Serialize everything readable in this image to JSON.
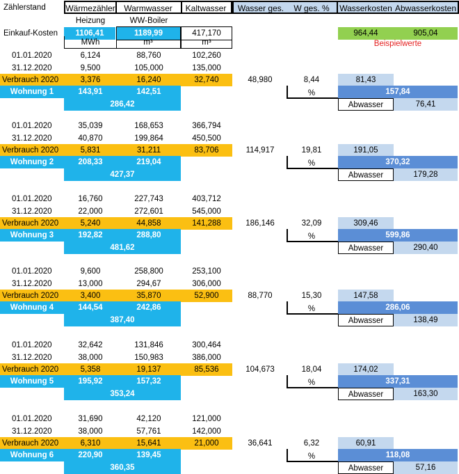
{
  "header": {
    "title": "Zählerstand",
    "cols": [
      "Wärmezähler",
      "Warmwasser",
      "Kaltwasser",
      "Wasser ges.",
      "W ges. %",
      "Wasserkosten",
      "Abwasserkosten"
    ],
    "sub_labels": [
      "Heizung",
      "WW-Boiler"
    ]
  },
  "einkauf": {
    "label": "Einkauf-Kosten",
    "heizung": "1106,41",
    "ww": "1189,99",
    "kalt": "417,170",
    "wasserkosten": "964,44",
    "abwasserkosten": "905,04",
    "note": "Beispielwerte"
  },
  "units": [
    "MWh",
    "m³",
    "m³"
  ],
  "colors": {
    "blue": "#1fb3ea",
    "orange": "#fbbf12",
    "light_blue": "#c4d8ee",
    "mid_blue": "#5b8ed6",
    "green": "#92d050",
    "note_red": "#e41e1e"
  },
  "blocks": [
    {
      "rows": [
        {
          "date": "01.01.2020",
          "heat": "6,124",
          "ww": "88,760",
          "kalt": "102,260"
        },
        {
          "date": "31.12.2020",
          "heat": "9,500",
          "ww": "105,000",
          "kalt": "135,000"
        }
      ],
      "verbrauch": {
        "label": "Verbrauch 2020",
        "heat": "3,376",
        "ww": "16,240",
        "kalt": "32,740",
        "ges": "48,980",
        "pct": "8,44",
        "wasserkosten": "81,43"
      },
      "wohnung": {
        "label": "Wohnung 1",
        "heat": "143,91",
        "ww": "142,51",
        "sum": "286,42",
        "pct_label": "%",
        "kosten": "157,84",
        "abwasser_label": "Abwasser",
        "abwasser": "76,41"
      }
    },
    {
      "rows": [
        {
          "date": "01.01.2020",
          "heat": "35,039",
          "ww": "168,653",
          "kalt": "366,794"
        },
        {
          "date": "31.12.2020",
          "heat": "40,870",
          "ww": "199,864",
          "kalt": "450,500"
        }
      ],
      "verbrauch": {
        "label": "Verbrauch 2020",
        "heat": "5,831",
        "ww": "31,211",
        "kalt": "83,706",
        "ges": "114,917",
        "pct": "19,81",
        "wasserkosten": "191,05"
      },
      "wohnung": {
        "label": "Wohnung 2",
        "heat": "208,33",
        "ww": "219,04",
        "sum": "427,37",
        "pct_label": "%",
        "kosten": "370,32",
        "abwasser_label": "Abwasser",
        "abwasser": "179,28"
      }
    },
    {
      "rows": [
        {
          "date": "01.01.2020",
          "heat": "16,760",
          "ww": "227,743",
          "kalt": "403,712"
        },
        {
          "date": "31.12.2020",
          "heat": "22,000",
          "ww": "272,601",
          "kalt": "545,000"
        }
      ],
      "verbrauch": {
        "label": "Verbrauch 2020",
        "heat": "5,240",
        "ww": "44,858",
        "kalt": "141,288",
        "ges": "186,146",
        "pct": "32,09",
        "wasserkosten": "309,46"
      },
      "wohnung": {
        "label": "Wohnung 3",
        "heat": "192,82",
        "ww": "288,80",
        "sum": "481,62",
        "pct_label": "%",
        "kosten": "599,86",
        "abwasser_label": "Abwasser",
        "abwasser": "290,40"
      }
    },
    {
      "rows": [
        {
          "date": "01.01.2020",
          "heat": "9,600",
          "ww": "258,800",
          "kalt": "253,100"
        },
        {
          "date": "31.12.2020",
          "heat": "13,000",
          "ww": "294,67",
          "kalt": "306,000"
        }
      ],
      "verbrauch": {
        "label": "Verbrauch 2020",
        "heat": "3,400",
        "ww": "35,870",
        "kalt": "52,900",
        "ges": "88,770",
        "pct": "15,30",
        "wasserkosten": "147,58"
      },
      "wohnung": {
        "label": "Wohnung 4",
        "heat": "144,54",
        "ww": "242,86",
        "sum": "387,40",
        "pct_label": "%",
        "kosten": "286,06",
        "abwasser_label": "Abwasser",
        "abwasser": "138,49"
      }
    },
    {
      "rows": [
        {
          "date": "01.01.2020",
          "heat": "32,642",
          "ww": "131,846",
          "kalt": "300,464"
        },
        {
          "date": "31.12.2020",
          "heat": "38,000",
          "ww": "150,983",
          "kalt": "386,000"
        }
      ],
      "verbrauch": {
        "label": "Verbrauch 2020",
        "heat": "5,358",
        "ww": "19,137",
        "kalt": "85,536",
        "ges": "104,673",
        "pct": "18,04",
        "wasserkosten": "174,02"
      },
      "wohnung": {
        "label": "Wohnung 5",
        "heat": "195,92",
        "ww": "157,32",
        "sum": "353,24",
        "pct_label": "%",
        "kosten": "337,31",
        "abwasser_label": "Abwasser",
        "abwasser": "163,30"
      }
    },
    {
      "rows": [
        {
          "date": "01.01.2020",
          "heat": "31,690",
          "ww": "42,120",
          "kalt": "121,000"
        },
        {
          "date": "31.12.2020",
          "heat": "38,000",
          "ww": "57,761",
          "kalt": "142,000"
        }
      ],
      "verbrauch": {
        "label": "Verbrauch 2020",
        "heat": "6,310",
        "ww": "15,641",
        "kalt": "21,000",
        "ges": "36,641",
        "pct": "6,32",
        "wasserkosten": "60,91"
      },
      "wohnung": {
        "label": "Wohnung 6",
        "heat": "220,90",
        "ww": "139,45",
        "sum": "360,35",
        "pct_label": "%",
        "kosten": "118,08",
        "abwasser_label": "Abwasser",
        "abwasser": "57,16"
      }
    }
  ]
}
